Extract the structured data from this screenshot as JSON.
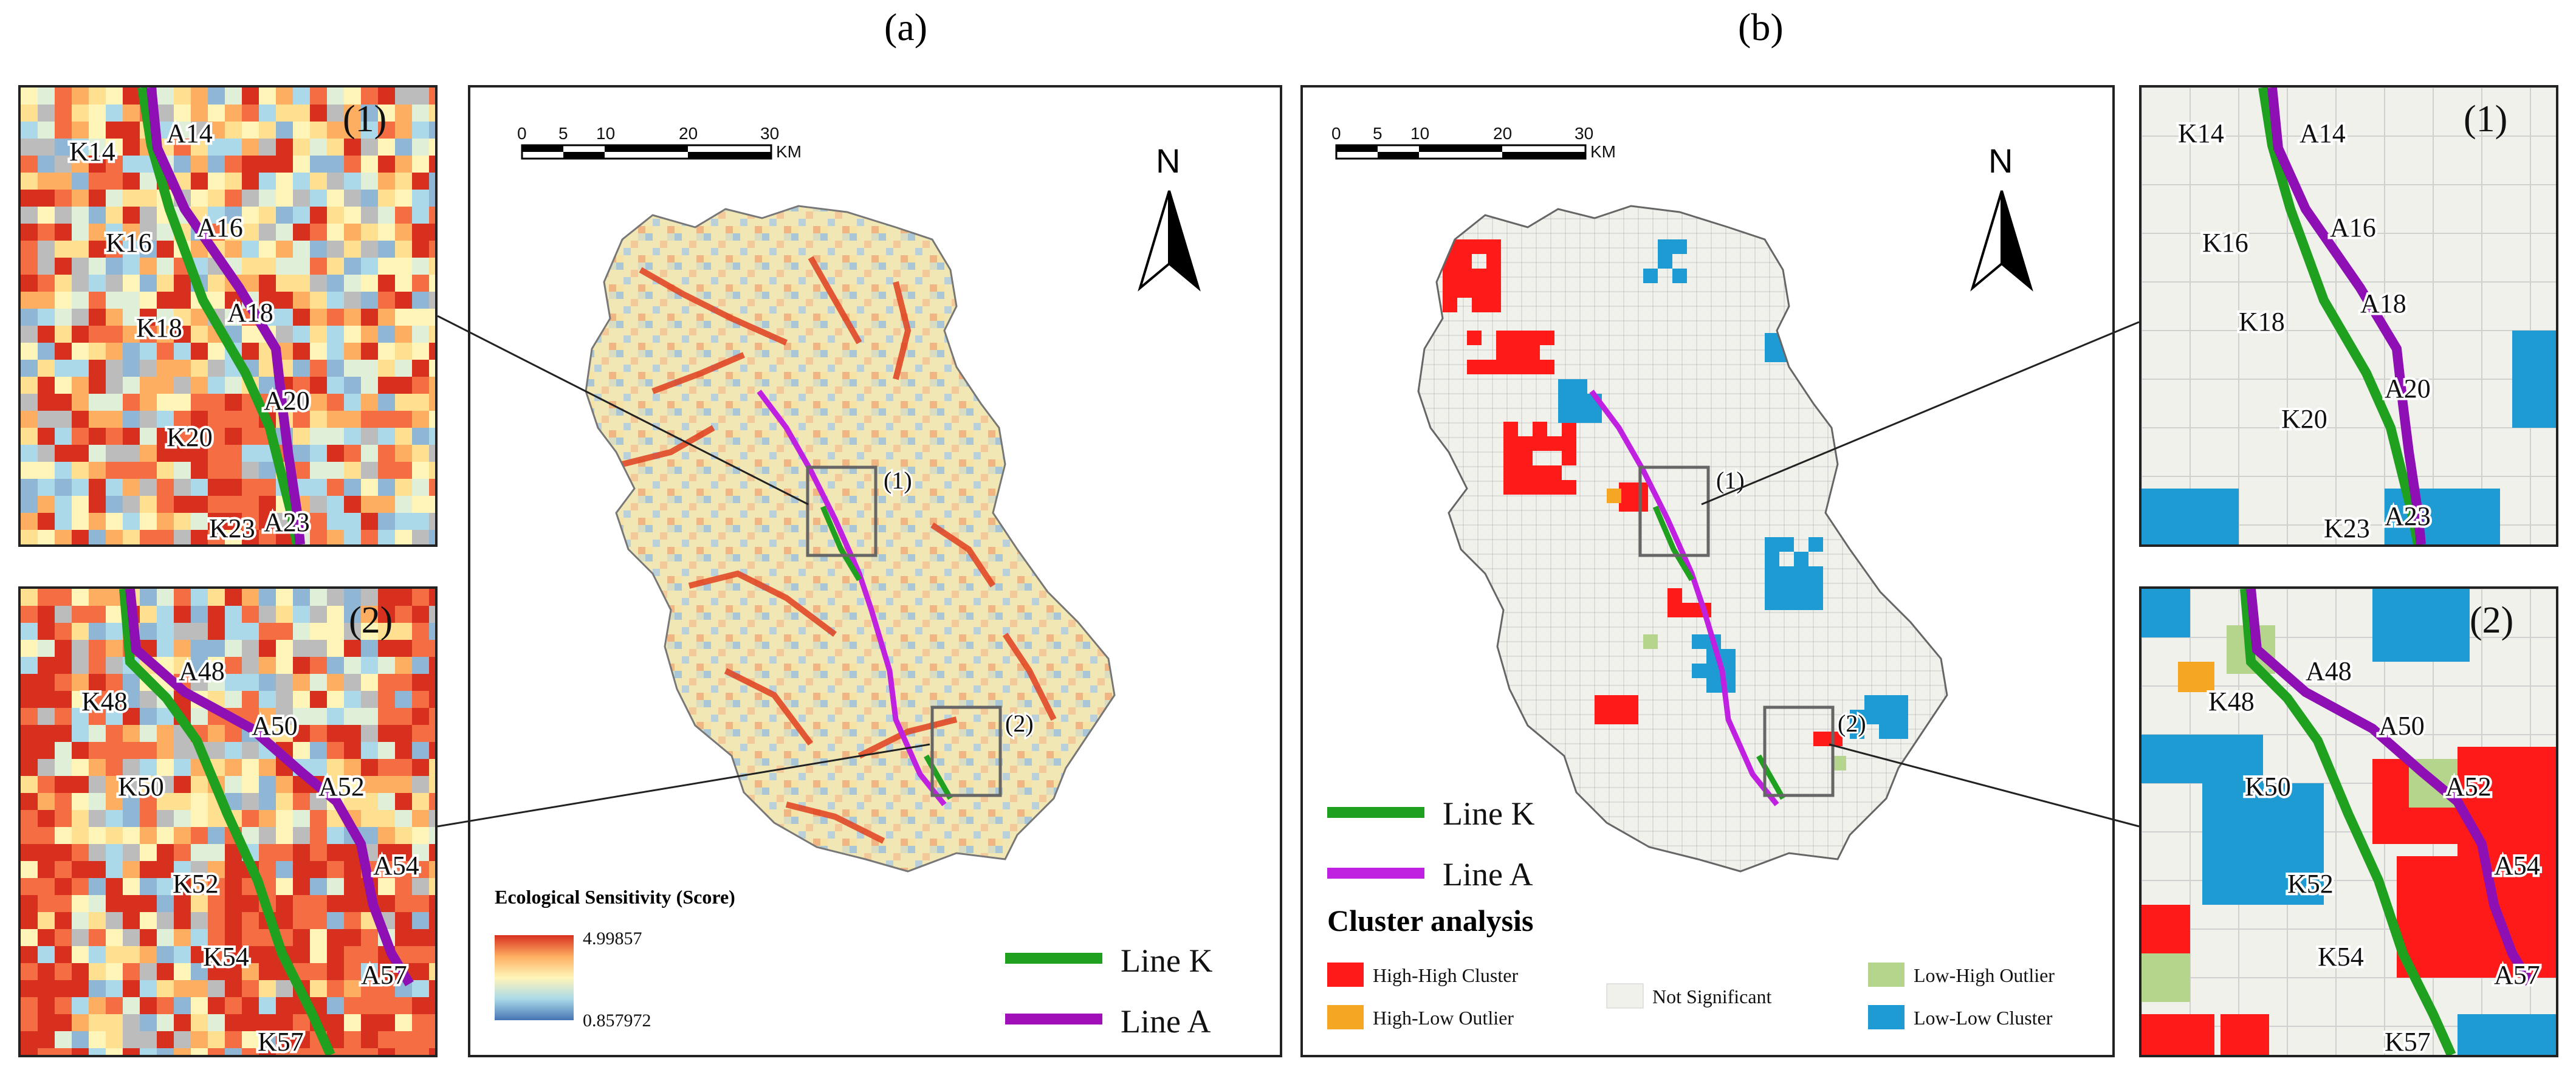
{
  "figure": {
    "panel_a_label": "(a)",
    "panel_b_label": "(b)"
  },
  "scale_bar": {
    "ticks": [
      "0",
      "5",
      "10",
      "20",
      "30"
    ],
    "unit": "KM"
  },
  "north_label": "N",
  "legend_a": {
    "title": "Ecological Sensitivity (Score)",
    "max": "4.99857",
    "min": "0.857972",
    "colors": [
      "#d7301f",
      "#fdae61",
      "#fff5b8",
      "#abd9e9",
      "#4575b4"
    ]
  },
  "lines": [
    {
      "name": "Line K",
      "color": "#1fa01f"
    },
    {
      "name": "Line A",
      "color": "#a010b8"
    }
  ],
  "line_a_color_map_a": "#c020e0",
  "legend_b": {
    "title": "Cluster analysis",
    "items": [
      {
        "label": "High-High Cluster",
        "color": "#ff1a1a"
      },
      {
        "label": "High-Low Outlier",
        "color": "#f5a623"
      },
      {
        "label": "Not Significant",
        "color": "#f1f1ec"
      },
      {
        "label": "Low-High Outlier",
        "color": "#b5d48c"
      },
      {
        "label": "Low-Low Cluster",
        "color": "#1f9bd3"
      }
    ]
  },
  "zoom_labels": {
    "z1": "(1)",
    "z2": "(2)"
  },
  "inset1_labels": {
    "k": [
      "K14",
      "K16",
      "K18",
      "K20",
      "K23"
    ],
    "a": [
      "A14",
      "A16",
      "A18",
      "A20",
      "A23"
    ]
  },
  "inset2_labels": {
    "k": [
      "K48",
      "K50",
      "K52",
      "K54",
      "K57"
    ],
    "a": [
      "A48",
      "A50",
      "A52",
      "A54",
      "A57"
    ]
  }
}
